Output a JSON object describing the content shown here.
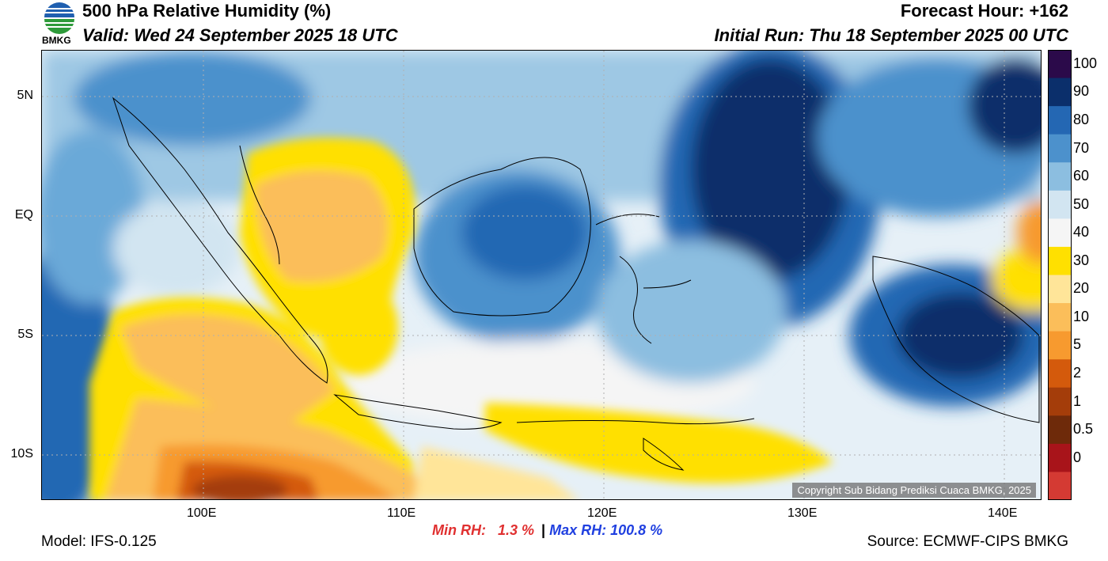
{
  "header": {
    "title": "500 hPa Relative Humidity (%)",
    "valid": "Valid: Wed 24 September 2025 18 UTC",
    "forecast_hour": "Forecast Hour: +162",
    "initial_run": "Initial Run: Thu 18 September 2025 00 UTC",
    "logo_text": "BMKG"
  },
  "map": {
    "lat_labels": [
      "5N",
      "EQ",
      "5S",
      "10S"
    ],
    "lon_labels": [
      "100E",
      "110E",
      "120E",
      "130E",
      "140E"
    ],
    "copyright": "Copyright Sub Bidang Prediksi Cuaca BMKG, 2025"
  },
  "colorbar": {
    "labels": [
      "100",
      "90",
      "80",
      "70",
      "60",
      "50",
      "40",
      "30",
      "20",
      "10",
      "5",
      "2",
      "1",
      "0.5",
      "0"
    ],
    "colors": [
      "#2b0a4a",
      "#0b2f6b",
      "#2467b3",
      "#4c91cc",
      "#8cbee0",
      "#d2e5f1",
      "#f5f5f5",
      "#ffe000",
      "#ffe599",
      "#fbbe5a",
      "#f79a2f",
      "#d45a0c",
      "#a43d0a",
      "#6e2a0a",
      "#a8141a",
      "#d43a33"
    ]
  },
  "stats": {
    "min_label": "Min RH:",
    "min_value": "1.3 %",
    "separator": "|",
    "max_label": "Max RH:",
    "max_value": "100.8 %"
  },
  "footer": {
    "model": "Model: IFS-0.125",
    "source": "Source: ECMWF-CIPS BMKG"
  }
}
